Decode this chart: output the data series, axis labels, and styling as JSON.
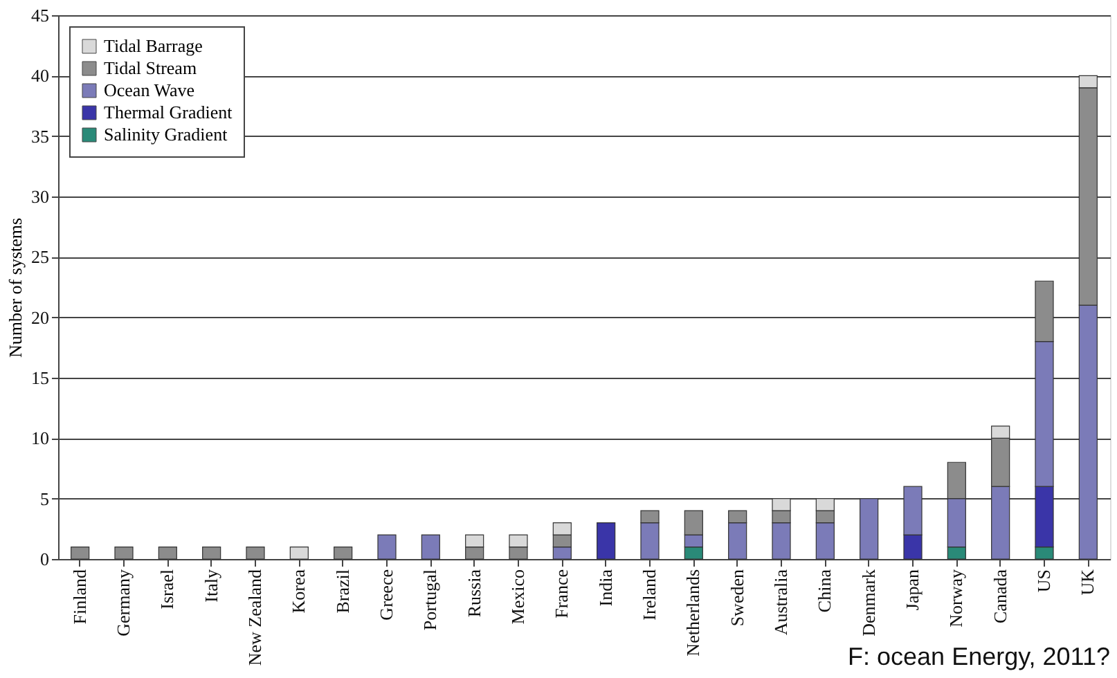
{
  "chart_data": {
    "type": "bar",
    "stacked": true,
    "ylabel": "Number of systems",
    "categories": [
      "Finland",
      "Germany",
      "Israel",
      "Italy",
      "New Zealand",
      "Korea",
      "Brazil",
      "Greece",
      "Portugal",
      "Russia",
      "Mexico",
      "France",
      "India",
      "Ireland",
      "Netherlands",
      "Sweden",
      "Australia",
      "China",
      "Denmark",
      "Japan",
      "Norway",
      "Canada",
      "US",
      "UK"
    ],
    "series": [
      {
        "name": "Salinity Gradient",
        "color": "#2a8a78",
        "values": [
          0,
          0,
          0,
          0,
          0,
          0,
          0,
          0,
          0,
          0,
          0,
          0,
          0,
          0,
          1,
          0,
          0,
          0,
          0,
          0,
          1,
          0,
          1,
          0
        ]
      },
      {
        "name": "Thermal Gradient",
        "color": "#3a35a8",
        "values": [
          0,
          0,
          0,
          0,
          0,
          0,
          0,
          0,
          0,
          0,
          0,
          0,
          3,
          0,
          0,
          0,
          0,
          0,
          0,
          2,
          0,
          0,
          5,
          0
        ]
      },
      {
        "name": "Ocean Wave",
        "color": "#7b7bb8",
        "values": [
          0,
          0,
          0,
          0,
          0,
          0,
          0,
          2,
          2,
          0,
          0,
          1,
          0,
          3,
          1,
          3,
          3,
          3,
          5,
          4,
          4,
          6,
          12,
          21
        ]
      },
      {
        "name": "Tidal Stream",
        "color": "#8c8c8c",
        "values": [
          1,
          1,
          1,
          1,
          1,
          0,
          1,
          0,
          0,
          1,
          1,
          1,
          0,
          1,
          2,
          1,
          1,
          1,
          0,
          0,
          3,
          4,
          5,
          18
        ]
      },
      {
        "name": "Tidal Barrage",
        "color": "#d9d9d9",
        "values": [
          0,
          0,
          0,
          0,
          0,
          1,
          0,
          0,
          0,
          1,
          1,
          1,
          0,
          0,
          0,
          0,
          1,
          1,
          0,
          0,
          0,
          1,
          0,
          1
        ]
      }
    ],
    "ylim": [
      0,
      45
    ],
    "yticks": [
      0,
      5,
      10,
      15,
      20,
      25,
      30,
      35,
      40,
      45
    ],
    "grid": "y",
    "legend": "top left",
    "annotations": [
      "F: ocean Energy, 2011?"
    ]
  }
}
